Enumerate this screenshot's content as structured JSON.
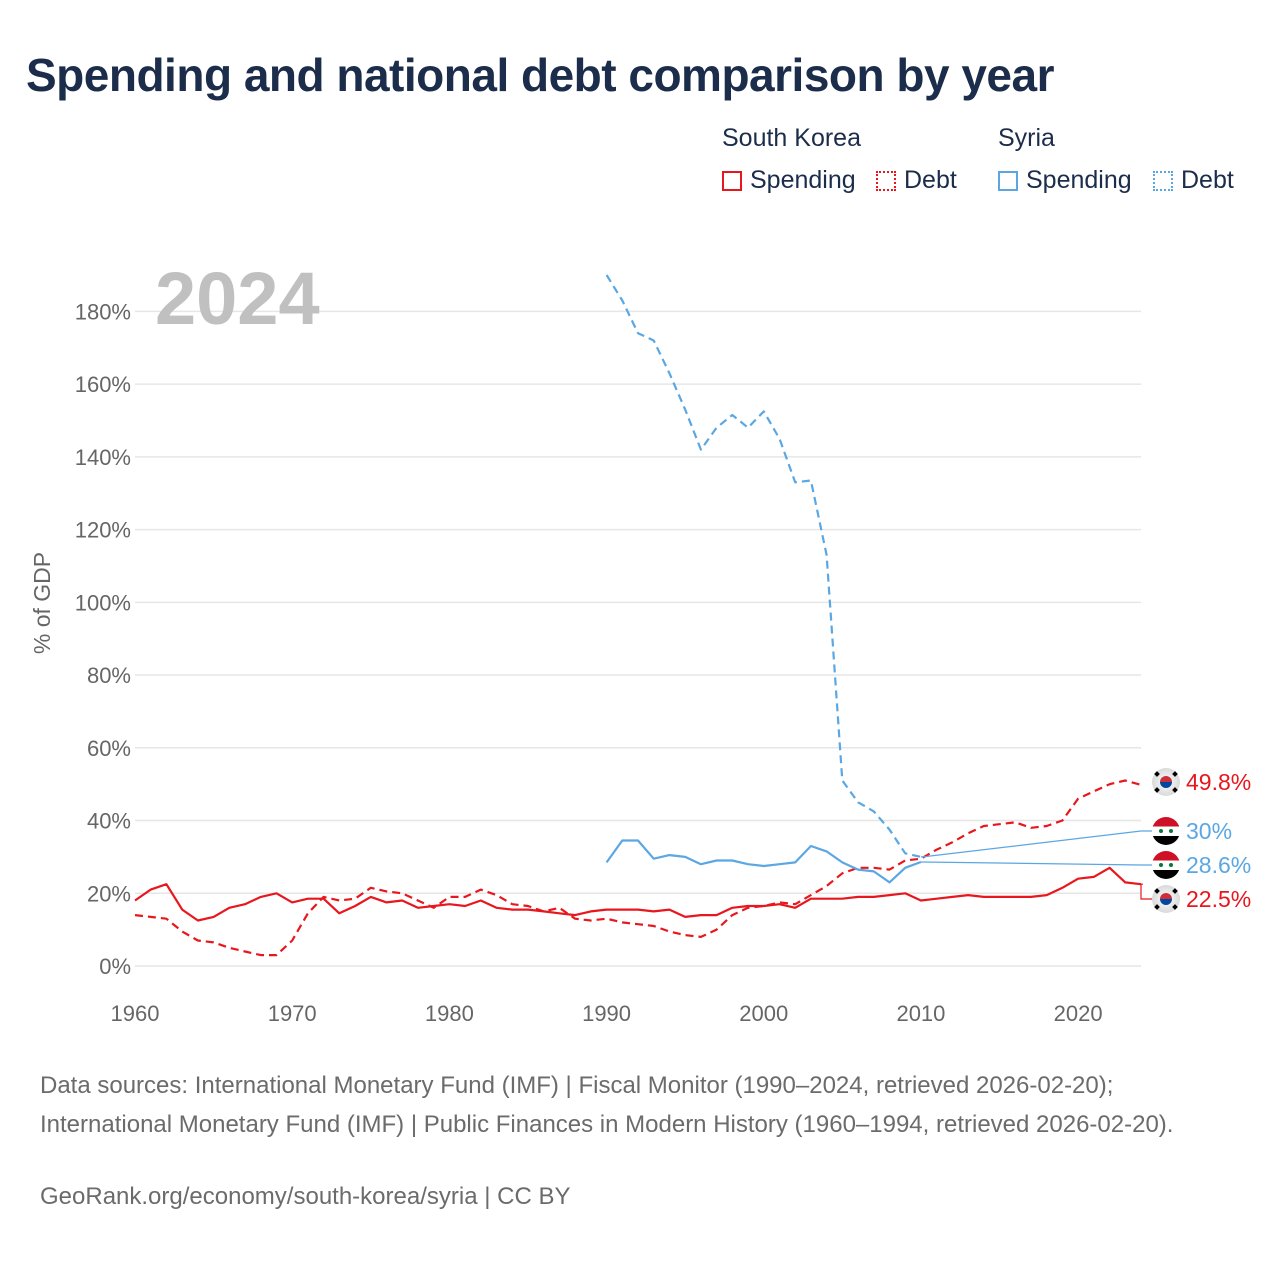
{
  "title": "Spending and national debt comparison by year",
  "legend": {
    "south_korea": {
      "name": "South Korea",
      "spending": "Spending",
      "debt": "Debt"
    },
    "syria": {
      "name": "Syria",
      "spending": "Spending",
      "debt": "Debt"
    }
  },
  "colors": {
    "south_korea": "#e8171d",
    "syria": "#5aa7e3",
    "year_watermark": "#c0c0c0",
    "axis_text": "#666666",
    "grid": "#e6e6e6"
  },
  "chart_data": {
    "type": "line",
    "year_label": "2024",
    "ylabel": "% of GDP",
    "xlim": [
      1960,
      2024
    ],
    "ylim": [
      0,
      190
    ],
    "x_ticks": [
      1960,
      1970,
      1980,
      1990,
      2000,
      2010,
      2020
    ],
    "x_tick_labels": [
      "1960",
      "1970",
      "1980",
      "1990",
      "2000",
      "2010",
      "2020"
    ],
    "y_ticks": [
      0,
      20,
      40,
      60,
      80,
      100,
      120,
      140,
      160,
      180
    ],
    "y_tick_labels": [
      "0%",
      "20%",
      "40%",
      "60%",
      "80%",
      "100%",
      "120%",
      "140%",
      "160%",
      "180%"
    ],
    "series": [
      {
        "name": "South Korea Spending",
        "country": "south_korea",
        "style": "solid",
        "start_year": 1960,
        "values": [
          18,
          21,
          22.5,
          15.5,
          12.5,
          13.5,
          16,
          17,
          19,
          20,
          17.5,
          18.5,
          18.5,
          14.5,
          16.5,
          19,
          17.5,
          18,
          16,
          16.5,
          17,
          16.5,
          18,
          16,
          15.5,
          15.5,
          15,
          14.5,
          14,
          15,
          15.5,
          15.5,
          15.5,
          15,
          15.5,
          13.5,
          14,
          14,
          16,
          16.5,
          16.5,
          17,
          16,
          18.5,
          18.5,
          18.5,
          19,
          19,
          19.5,
          20,
          18,
          18.5,
          19,
          19.5,
          19,
          19,
          19,
          19,
          19.5,
          21.5,
          24,
          24.5,
          27,
          23,
          22.5
        ]
      },
      {
        "name": "South Korea Debt",
        "country": "south_korea",
        "style": "dashed",
        "start_year": 1960,
        "values": [
          14,
          13.5,
          13,
          9.5,
          7,
          6.5,
          5,
          4,
          3,
          3,
          7,
          14.5,
          19,
          18,
          18.5,
          21.5,
          20.5,
          20,
          18,
          16,
          19,
          19,
          21,
          19.5,
          17,
          16.5,
          15,
          16,
          13,
          12.5,
          13,
          12,
          11.5,
          11,
          9.5,
          8.5,
          8,
          10,
          14,
          16,
          16.5,
          17.5,
          17,
          19.5,
          22,
          25.5,
          27,
          27,
          26.5,
          29,
          29.5,
          32,
          34,
          36.5,
          38.5,
          39,
          39.5,
          38,
          38.5,
          40,
          46,
          48,
          50,
          51,
          49.8
        ]
      },
      {
        "name": "Syria Spending",
        "country": "syria",
        "style": "solid",
        "start_year": 1990,
        "values": [
          28.5,
          34.5,
          34.5,
          29.5,
          30.5,
          30,
          28,
          29,
          29,
          28,
          27.5,
          28,
          28.5,
          33,
          31.5,
          28.5,
          26.5,
          26,
          23,
          27,
          28.6
        ]
      },
      {
        "name": "Syria Debt",
        "country": "syria",
        "style": "dashed",
        "start_year": 1990,
        "values": [
          190,
          183,
          174,
          172,
          163,
          153,
          142,
          148,
          151.5,
          148,
          152.5,
          145,
          133,
          133.5,
          113,
          51,
          45,
          42.5,
          37.5,
          31,
          30
        ]
      }
    ],
    "end_labels": [
      {
        "series": "South Korea Debt",
        "country": "south_korea",
        "text": "49.8%"
      },
      {
        "series": "Syria Debt",
        "country": "syria",
        "text": "30%"
      },
      {
        "series": "Syria Spending",
        "country": "syria",
        "text": "28.6%"
      },
      {
        "series": "South Korea Spending",
        "country": "south_korea",
        "text": "22.5%"
      }
    ]
  },
  "footer": {
    "sources": "Data sources: International Monetary Fund (IMF) | Fiscal Monitor (1990–2024, retrieved 2026-02-20); International Monetary Fund (IMF) | Public Finances in Modern History (1960–1994, retrieved 2026-02-20).",
    "credit": "GeoRank.org/economy/south-korea/syria | CC BY"
  }
}
